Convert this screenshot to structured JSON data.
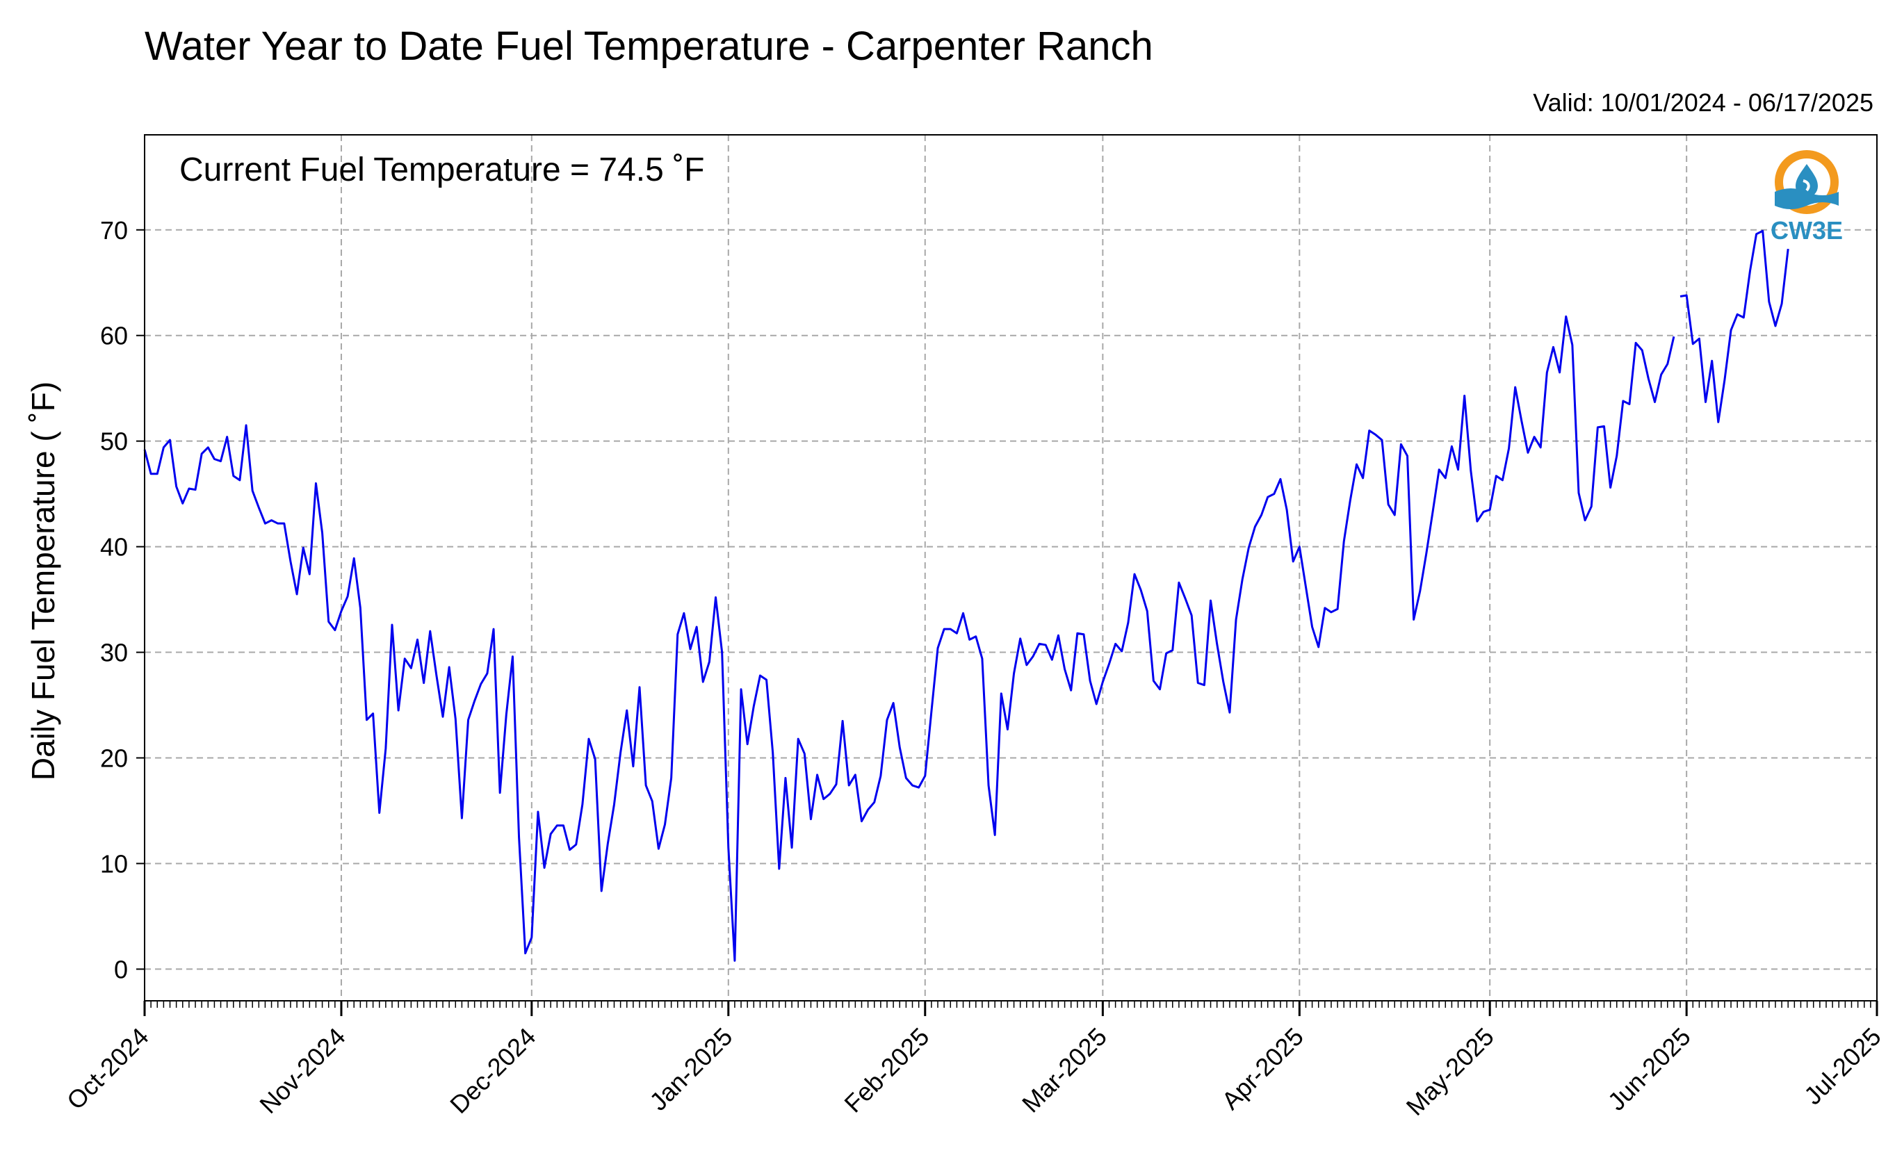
{
  "logo": {
    "text": "CW3E",
    "ring_color": "#f39a1e",
    "wave_color": "#2a8fc1"
  },
  "chart_data": {
    "type": "line",
    "title": "Water Year to Date Fuel Temperature - Carpenter Ranch",
    "subtitle": "Valid: 10/01/2024 - 06/17/2025",
    "annotation": "Current Fuel Temperature = 74.5  ˚F",
    "xlabel": "",
    "ylabel": "Daily Fuel Temperature ( ˚F)",
    "xlim": [
      "2024-10-01",
      "2025-07-01"
    ],
    "ylim": [
      -3,
      79
    ],
    "yticks": [
      0,
      10,
      20,
      30,
      40,
      50,
      60,
      70
    ],
    "xticks": [
      {
        "date": "2024-10-01",
        "label": "Oct-2024"
      },
      {
        "date": "2024-11-01",
        "label": "Nov-2024"
      },
      {
        "date": "2024-12-01",
        "label": "Dec-2024"
      },
      {
        "date": "2025-01-01",
        "label": "Jan-2025"
      },
      {
        "date": "2025-02-01",
        "label": "Feb-2025"
      },
      {
        "date": "2025-03-01",
        "label": "Mar-2025"
      },
      {
        "date": "2025-04-01",
        "label": "Apr-2025"
      },
      {
        "date": "2025-05-01",
        "label": "May-2025"
      },
      {
        "date": "2025-06-01",
        "label": "Jun-2025"
      },
      {
        "date": "2025-07-01",
        "label": "Jul-2025"
      }
    ],
    "grid": true,
    "line_color": "#0000ee",
    "series": [
      {
        "segments": [
          {
            "start": "2024-10-01",
            "values": [
              49.2,
              46.9,
              46.9,
              49.4,
              50.1,
              45.7,
              44.1,
              45.5,
              45.4,
              48.8,
              49.4,
              48.3,
              48.1,
              50.4,
              46.7,
              46.3,
              51.5,
              45.3,
              43.7,
              42.2,
              42.5,
              42.2,
              42.2,
              38.6,
              35.5,
              39.9,
              37.4,
              46.0,
              41.3,
              32.9,
              32.1,
              33.9,
              35.3,
              38.9,
              34.2,
              23.6,
              24.2,
              14.8,
              20.9,
              32.6,
              24.5,
              29.4,
              28.5,
              31.2,
              27.1,
              32.0,
              27.8,
              23.9,
              28.6,
              23.7,
              14.3,
              23.6,
              25.4,
              27.0,
              28.0,
              32.2,
              16.7,
              24.1,
              29.6,
              12.5,
              1.5,
              3.0,
              14.9,
              9.6,
              12.8,
              13.6,
              13.6,
              11.3,
              11.8,
              15.6,
              21.8,
              19.9,
              7.4,
              11.9,
              15.6,
              20.5,
              24.5,
              19.2,
              26.7,
              17.4,
              15.9,
              11.4,
              13.7,
              18.1,
              31.7,
              33.7,
              30.3,
              32.4,
              27.2,
              29.1,
              35.2,
              30.0,
              11.5,
              0.8,
              26.5,
              21.3,
              24.9,
              27.8,
              27.4,
              20.5,
              9.5,
              18.1,
              11.5,
              21.8,
              20.4,
              14.2,
              18.4,
              16.1,
              16.6,
              17.5,
              23.5,
              17.4,
              18.4,
              14.0,
              15.1,
              15.8,
              18.3,
              23.6,
              25.2,
              21.0,
              18.1,
              17.4,
              17.2,
              18.3,
              24.4,
              30.4,
              32.2,
              32.2,
              31.8,
              33.7,
              31.2,
              31.5,
              29.4,
              17.4,
              12.7,
              26.1,
              22.7,
              28.0,
              31.3,
              28.8,
              29.6,
              30.8,
              30.7,
              29.3,
              31.6,
              28.4,
              26.4,
              31.8,
              31.7,
              27.3,
              25.1,
              27.2,
              28.9,
              30.8,
              30.1,
              32.8,
              37.4,
              35.9,
              33.9,
              27.3,
              26.5,
              29.9,
              30.2,
              36.6,
              35.1,
              33.5,
              27.1,
              26.9,
              34.9,
              30.8,
              27.2,
              24.3,
              33.1,
              36.9,
              39.9,
              41.9,
              43.0,
              44.7,
              45.0,
              46.4,
              43.5,
              38.6,
              40.0,
              36.2,
              32.4,
              30.5,
              34.2,
              33.8,
              34.1,
              40.5,
              44.4,
              47.8,
              46.5,
              51.0,
              50.6,
              50.1,
              44.0,
              43.0,
              49.7,
              48.6,
              33.1,
              35.8,
              39.4,
              43.3,
              47.3,
              46.5,
              49.5,
              47.3,
              54.3,
              47.2,
              42.4,
              43.3,
              43.5,
              46.7,
              46.3,
              49.3,
              55.1,
              51.9,
              48.9,
              50.4,
              49.4,
              56.5,
              58.9,
              56.5,
              61.8,
              59.1,
              45.1,
              42.5,
              43.8,
              51.3,
              51.4,
              45.6,
              48.6,
              53.8,
              53.5,
              59.3,
              58.6,
              55.9,
              53.7,
              56.3,
              57.3,
              59.9
            ]
          },
          {
            "start": "2025-05-31",
            "values": [
              63.7,
              63.8,
              59.2,
              59.7,
              53.7,
              57.6,
              51.8,
              55.8,
              60.5,
              62.0,
              61.7,
              66.1,
              69.6,
              69.9,
              63.2,
              60.9,
              63.0,
              68.2
            ]
          }
        ]
      }
    ]
  }
}
